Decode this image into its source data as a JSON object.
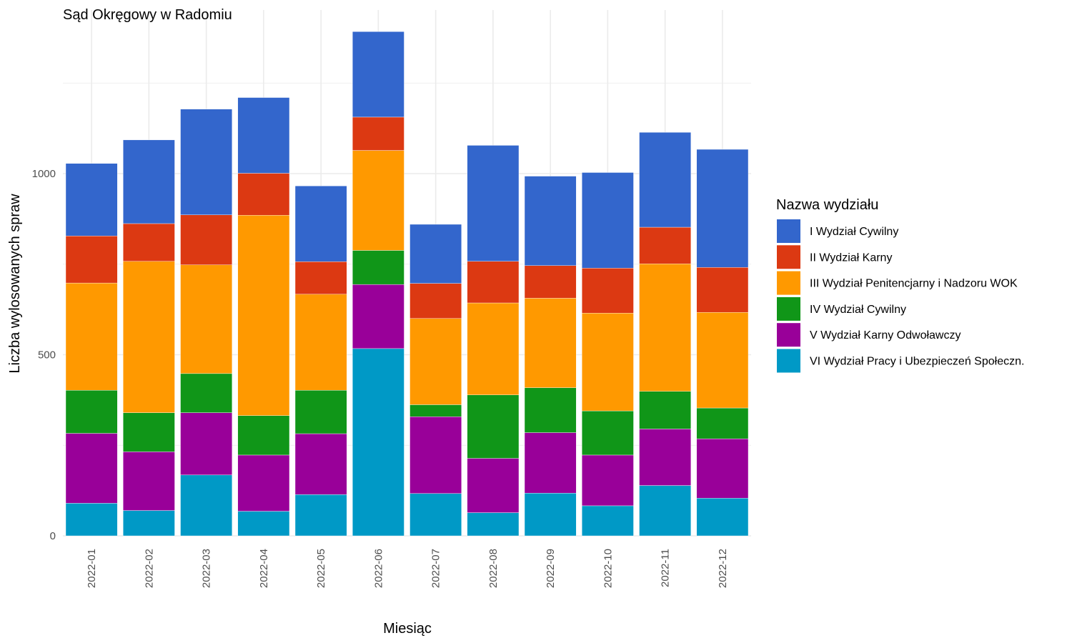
{
  "chart_data": {
    "type": "bar",
    "stacked": true,
    "title": "Sąd Okręgowy w Radomiu",
    "xlabel": "Miesiąc",
    "ylabel": "Liczba wylosowanych spraw",
    "ylim": [
      0,
      1400
    ],
    "yticks": [
      0,
      500,
      1000
    ],
    "grid": true,
    "legend_title": "Nazwa wydziału",
    "legend_position": "right",
    "categories": [
      "2022-01",
      "2022-02",
      "2022-03",
      "2022-04",
      "2022-05",
      "2022-06",
      "2022-07",
      "2022-08",
      "2022-09",
      "2022-10",
      "2022-11",
      "2022-12"
    ],
    "series": [
      {
        "name": "VI Wydział Pracy i Ubezpieczeń Społeczn.",
        "color": "#0099C6",
        "values": [
          90,
          70,
          168,
          68,
          114,
          517,
          117,
          64,
          118,
          83,
          139,
          104
        ]
      },
      {
        "name": "V Wydział Karny Odwoławczy",
        "color": "#990099",
        "values": [
          193,
          162,
          172,
          155,
          168,
          177,
          212,
          150,
          167,
          140,
          156,
          164
        ]
      },
      {
        "name": "IV Wydział Cywilny",
        "color": "#109618",
        "values": [
          119,
          108,
          108,
          109,
          120,
          94,
          33,
          175,
          124,
          122,
          104,
          85
        ]
      },
      {
        "name": "III Wydział Penitencjarny i Nadzoru WOK",
        "color": "#FF9900",
        "values": [
          296,
          418,
          300,
          553,
          265,
          276,
          238,
          254,
          247,
          270,
          352,
          264
        ]
      },
      {
        "name": "II Wydział Karny",
        "color": "#DC3912",
        "values": [
          130,
          104,
          138,
          116,
          90,
          92,
          97,
          115,
          90,
          124,
          101,
          124
        ]
      },
      {
        "name": "I Wydział Cywilny",
        "color": "#3366CC",
        "values": [
          200,
          231,
          292,
          209,
          209,
          236,
          163,
          320,
          247,
          264,
          262,
          326
        ]
      }
    ],
    "legend_order": [
      "I Wydział Cywilny",
      "II Wydział Karny",
      "III Wydział Penitencjarny i Nadzoru WOK",
      "IV Wydział Cywilny",
      "V Wydział Karny Odwoławczy",
      "VI Wydział Pracy i Ubezpieczeń Społeczn."
    ]
  }
}
